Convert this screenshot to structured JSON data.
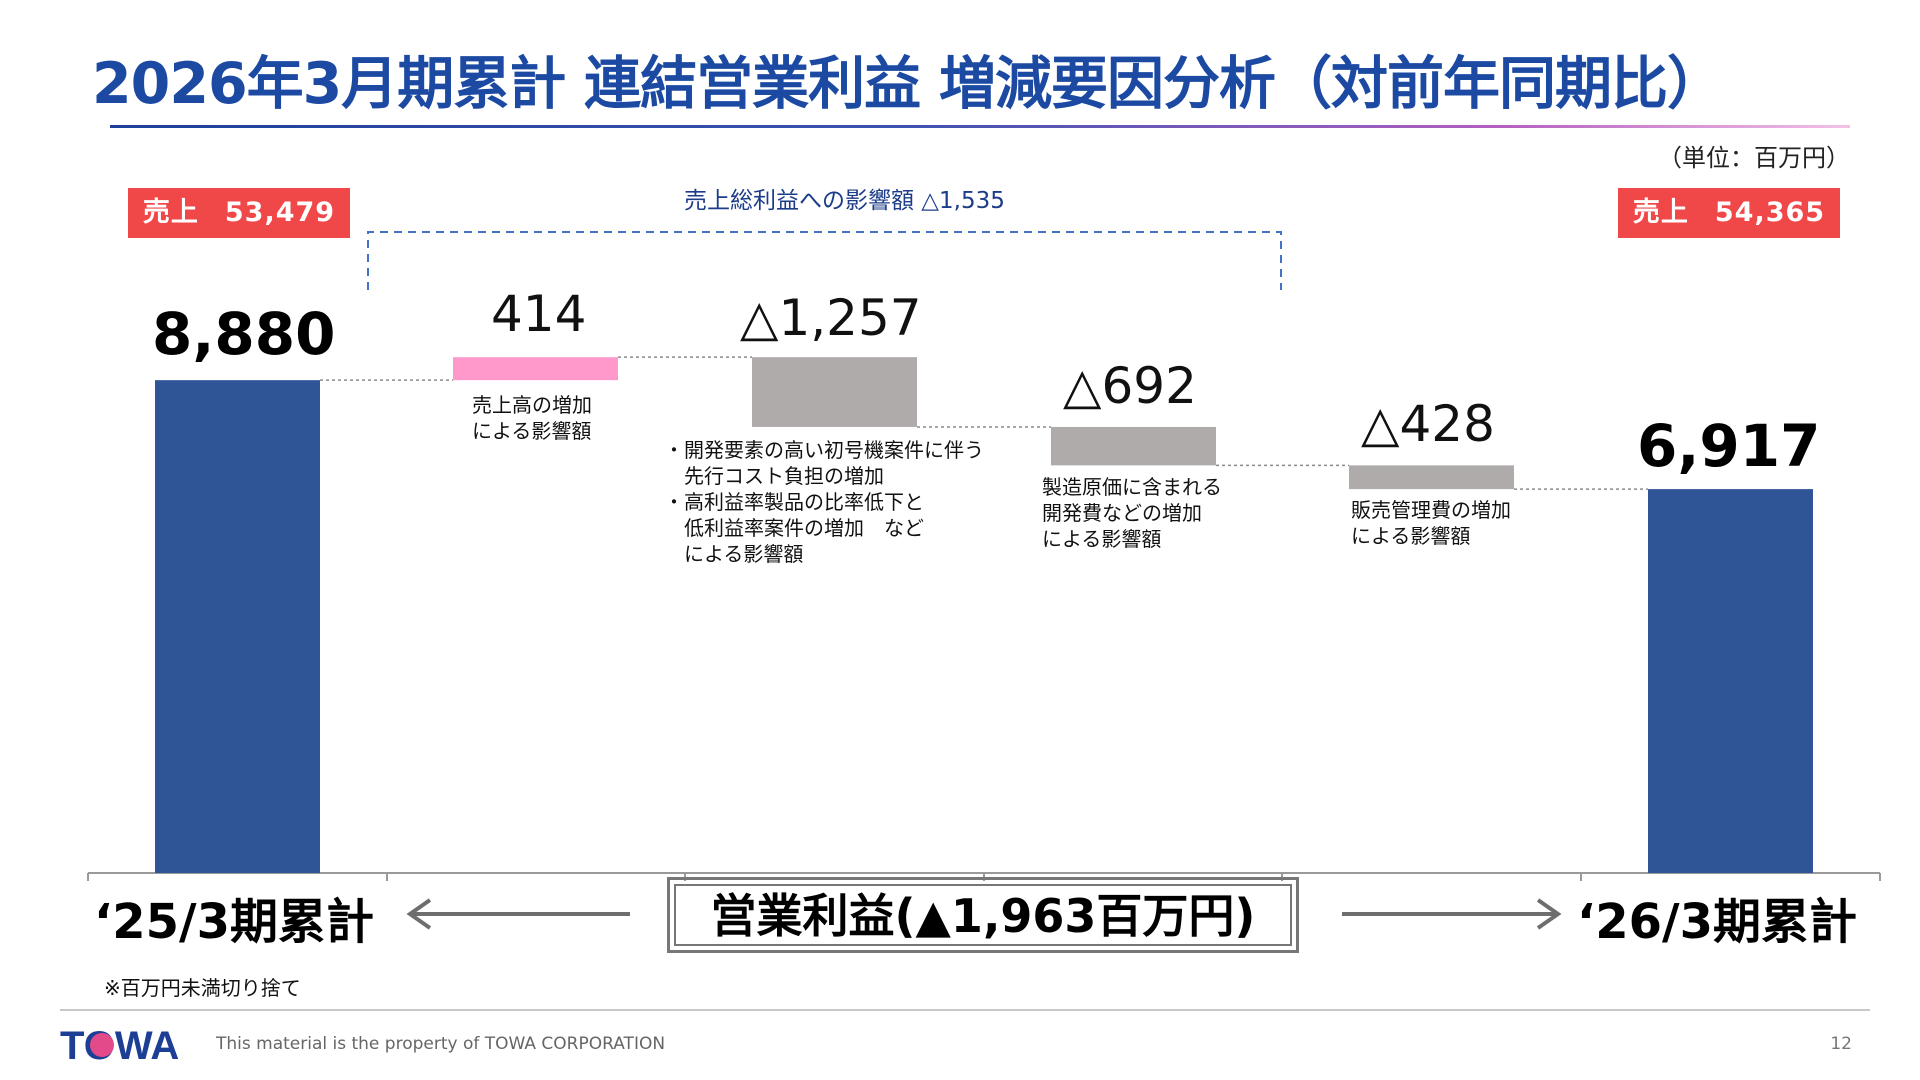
{
  "slide": {
    "title": "2026年3月期累計 連結営業利益 増減要因分析（対前年同期比）",
    "unit": "（単位：百万円）",
    "footnote": "※百万円未満切り捨て",
    "copyright": "This material is the property of TOWA CORPORATION",
    "page_number": "12",
    "logo_text": "TOWA"
  },
  "sales": {
    "left_label": "売上",
    "left_value": "53,479",
    "right_label": "売上",
    "right_value": "54,365"
  },
  "bracket": {
    "label": "売上総利益への影響額 △1,535"
  },
  "periods": {
    "left": "‘25/3期累計",
    "right": "‘26/3期累計"
  },
  "op_box": {
    "label": "営業利益(▲1,963百万円)"
  },
  "labels": {
    "start": "8,880",
    "sales_increase": "414",
    "dev_cost": "△1,257",
    "mfg_cost": "△692",
    "sga": "△428",
    "end": "6,917"
  },
  "notes": {
    "sales_increase": "売上高の増加\nによる影響額",
    "dev_cost": "・開発要素の高い初号機案件に伴う\n　先行コスト負担の増加\n・高利益率製品の比率低下と\n　低利益率案件の増加　など\n　による影響額",
    "mfg_cost": "製造原価に含まれる\n開発費などの増加\nによる影響額",
    "sga": "販売管理費の増加\nによる影響額"
  },
  "colors": {
    "title": "#1c4aa3",
    "total_bar": "#2f5597",
    "increase_bar": "#ff99cc",
    "decrease_bar": "#afabab",
    "sales_badge": "#f04848",
    "bracket": "#4472c4"
  },
  "chart_data": {
    "type": "bar",
    "subtype": "waterfall",
    "categories": [
      "‘25/3期累計",
      "売上高の増加による影響額",
      "先行コスト等",
      "製造原価に含まれる開発費など",
      "販売管理費",
      "‘26/3期累計"
    ],
    "series": [
      {
        "values": [
          8880,
          414,
          -1257,
          -692,
          -428,
          6917
        ]
      }
    ],
    "kinds": [
      "total",
      "increase",
      "decrease",
      "decrease",
      "decrease",
      "total"
    ],
    "grid": false
  }
}
